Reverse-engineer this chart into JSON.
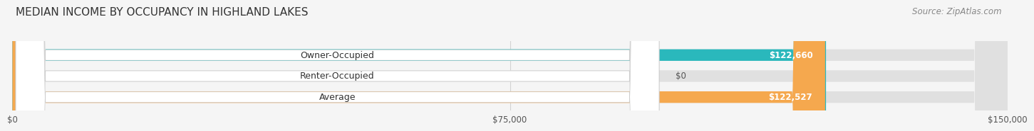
{
  "title": "MEDIAN INCOME BY OCCUPANCY IN HIGHLAND LAKES",
  "source": "Source: ZipAtlas.com",
  "categories": [
    "Owner-Occupied",
    "Renter-Occupied",
    "Average"
  ],
  "values": [
    122660,
    0,
    122527
  ],
  "bar_colors": [
    "#2ab8bc",
    "#c8a8d8",
    "#f5a84e"
  ],
  "value_labels": [
    "$122,660",
    "$0",
    "$122,527"
  ],
  "xmax": 150000,
  "xtick_labels": [
    "$0",
    "$75,000",
    "$150,000"
  ],
  "bar_height": 0.55,
  "background_color": "#f5f5f5",
  "bar_background_color": "#e0e0e0",
  "title_fontsize": 11,
  "source_fontsize": 8.5,
  "label_fontsize": 9,
  "value_fontsize": 8.5
}
